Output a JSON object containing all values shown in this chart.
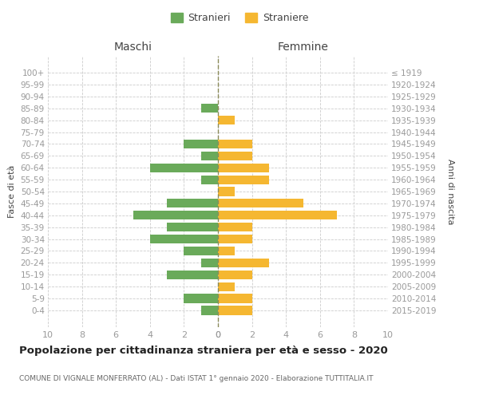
{
  "age_groups": [
    "100+",
    "95-99",
    "90-94",
    "85-89",
    "80-84",
    "75-79",
    "70-74",
    "65-69",
    "60-64",
    "55-59",
    "50-54",
    "45-49",
    "40-44",
    "35-39",
    "30-34",
    "25-29",
    "20-24",
    "15-19",
    "10-14",
    "5-9",
    "0-4"
  ],
  "birth_years": [
    "≤ 1919",
    "1920-1924",
    "1925-1929",
    "1930-1934",
    "1935-1939",
    "1940-1944",
    "1945-1949",
    "1950-1954",
    "1955-1959",
    "1960-1964",
    "1965-1969",
    "1970-1974",
    "1975-1979",
    "1980-1984",
    "1985-1989",
    "1990-1994",
    "1995-1999",
    "2000-2004",
    "2005-2009",
    "2010-2014",
    "2015-2019"
  ],
  "males": [
    0,
    0,
    0,
    1,
    0,
    0,
    2,
    1,
    4,
    1,
    0,
    3,
    5,
    3,
    4,
    2,
    1,
    3,
    0,
    2,
    1
  ],
  "females": [
    0,
    0,
    0,
    0,
    1,
    0,
    2,
    2,
    3,
    3,
    1,
    5,
    7,
    2,
    2,
    1,
    3,
    2,
    1,
    2,
    2
  ],
  "male_color": "#6aaa5a",
  "female_color": "#f5b731",
  "center_line_color": "#8b8b5a",
  "title": "Popolazione per cittadinanza straniera per età e sesso - 2020",
  "subtitle": "COMUNE DI VIGNALE MONFERRATO (AL) - Dati ISTAT 1° gennaio 2020 - Elaborazione TUTTITALIA.IT",
  "legend_male": "Stranieri",
  "legend_female": "Straniere",
  "label_maschi": "Maschi",
  "label_femmine": "Femmine",
  "ylabel_left": "Fasce di età",
  "ylabel_right": "Anni di nascita",
  "xlim": 10,
  "bg_color": "#ffffff",
  "grid_color": "#cccccc",
  "label_color": "#999999",
  "title_color": "#222222",
  "subtitle_color": "#666666",
  "section_title_color": "#444444"
}
